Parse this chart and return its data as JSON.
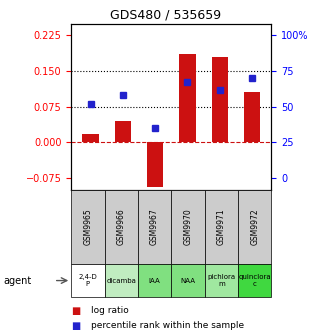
{
  "title": "GDS480 / 535659",
  "samples": [
    "GSM9965",
    "GSM9966",
    "GSM9967",
    "GSM9970",
    "GSM9971",
    "GSM9972"
  ],
  "agents": [
    "2,4-D\nP",
    "dicamba",
    "IAA",
    "NAA",
    "pichlora\nm",
    "quinclora\nc"
  ],
  "agent_colors": [
    "#ffffff",
    "#c0ecc0",
    "#80e080",
    "#80e080",
    "#a0e8a0",
    "#40d840"
  ],
  "log_ratios": [
    0.018,
    0.045,
    -0.095,
    0.185,
    0.18,
    0.105
  ],
  "percentile_ranks": [
    52,
    58,
    35,
    67,
    62,
    70
  ],
  "ylim_left": [
    -0.1,
    0.25
  ],
  "yticks_left": [
    -0.075,
    0.0,
    0.075,
    0.15,
    0.225
  ],
  "yticks_right_labels": [
    "0",
    "25",
    "50",
    "75",
    "100%"
  ],
  "bar_color": "#cc1111",
  "dot_color": "#2222cc",
  "hline_color": "#cc1111",
  "dotline1": 0.15,
  "dotline2": 0.075,
  "bar_width": 0.5,
  "sample_bg_color": "#cccccc"
}
